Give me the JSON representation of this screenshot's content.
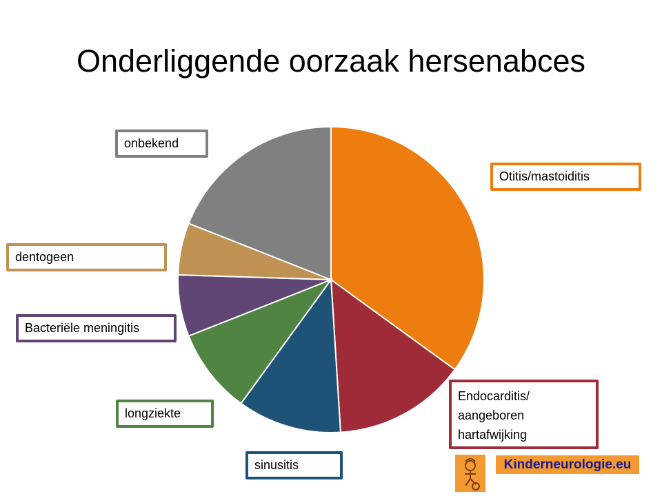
{
  "title": "Onderliggende oorzaak hersenabces",
  "brand": {
    "text": "Kinderneurologie.eu",
    "bg": "#f39a33",
    "fg": "#1a1a8c"
  },
  "chart_data": {
    "type": "pie",
    "title": "Onderliggende oorzaak hersenabces",
    "start": "12 o'clock, clockwise",
    "slices": [
      {
        "label": "Otitis/mastoiditis",
        "value": 35,
        "color": "#ed7d0f"
      },
      {
        "label": "Endocarditis/\naangeboren\nhartafwijking",
        "value": 14,
        "color": "#9e2b37"
      },
      {
        "label": "sinusitis",
        "value": 11,
        "color": "#1f5277"
      },
      {
        "label": "longziekte",
        "value": 9,
        "color": "#4f8442"
      },
      {
        "label": "Bacteriële meningitis",
        "value": 6.5,
        "color": "#5f4675"
      },
      {
        "label": "dentogeen",
        "value": 5.5,
        "color": "#bf9254"
      },
      {
        "label": "onbekend",
        "value": 19,
        "color": "#808080"
      }
    ]
  }
}
